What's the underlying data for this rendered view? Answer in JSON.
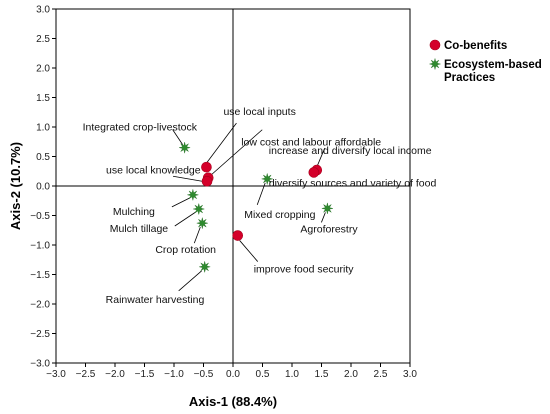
{
  "chart_data": {
    "type": "scatter",
    "title": "",
    "xlabel": "Axis-1 (88.4%)",
    "ylabel": "Axis-2 (10.7%)",
    "xlim": [
      -3.0,
      3.0
    ],
    "ylim": [
      -3.0,
      3.0
    ],
    "xticks": [
      -3.0,
      -2.5,
      -2.0,
      -1.5,
      -1.0,
      -0.5,
      0.0,
      0.5,
      1.0,
      1.5,
      2.0,
      2.5,
      3.0
    ],
    "yticks": [
      3.0,
      2.5,
      2.0,
      1.5,
      1.0,
      0.5,
      0.0,
      -0.5,
      -1.0,
      -1.5,
      -2.0,
      -2.5,
      -3.0
    ],
    "xtick_labels": [
      "−3.0",
      "−2.5",
      "−2.0",
      "−1.5",
      "−1.0",
      "−0.5",
      "0.0",
      "0.5",
      "1.0",
      "1.5",
      "2.0",
      "2.5",
      "3.0"
    ],
    "ytick_labels": [
      "3.0",
      "2.5",
      "2.0",
      "1.5",
      "1.0",
      "0.5",
      "0.0",
      "−0.5",
      "−1.0",
      "−1.5",
      "−2.0",
      "−2.5",
      "−3.0"
    ],
    "grid": false,
    "reference_lines": {
      "x": 0,
      "y": 0
    },
    "legend_position": "top-right",
    "series": [
      {
        "name": "Co-benefits",
        "marker": "circle",
        "color": "#d4002a",
        "points": [
          {
            "label": "use local inputs",
            "x": -0.45,
            "y": 0.32
          },
          {
            "label": "low cost and labour affordable",
            "x": -0.42,
            "y": 0.14
          },
          {
            "label": "use local knowledge",
            "x": -0.44,
            "y": 0.08
          },
          {
            "label": "increase and diversify local income",
            "x": 1.42,
            "y": 0.27
          },
          {
            "label": "diversify sources and variety of food",
            "x": 1.37,
            "y": 0.23
          },
          {
            "label": "improve food security",
            "x": 0.08,
            "y": -0.84
          }
        ]
      },
      {
        "name": "Ecosystem-based Practices",
        "marker": "star",
        "color": "#2e8b2e",
        "points": [
          {
            "label": "Integrated crop-livestock",
            "x": -0.82,
            "y": 0.65
          },
          {
            "label": "Mulching",
            "x": -0.68,
            "y": -0.15
          },
          {
            "label": "Mulch tillage",
            "x": -0.58,
            "y": -0.39
          },
          {
            "label": "Crop rotation",
            "x": -0.52,
            "y": -0.63
          },
          {
            "label": "Mixed cropping",
            "x": 0.58,
            "y": 0.12
          },
          {
            "label": "Agroforestry",
            "x": 1.6,
            "y": -0.38
          },
          {
            "label": "Rainwater harvesting",
            "x": -0.48,
            "y": -1.37
          }
        ]
      }
    ]
  }
}
